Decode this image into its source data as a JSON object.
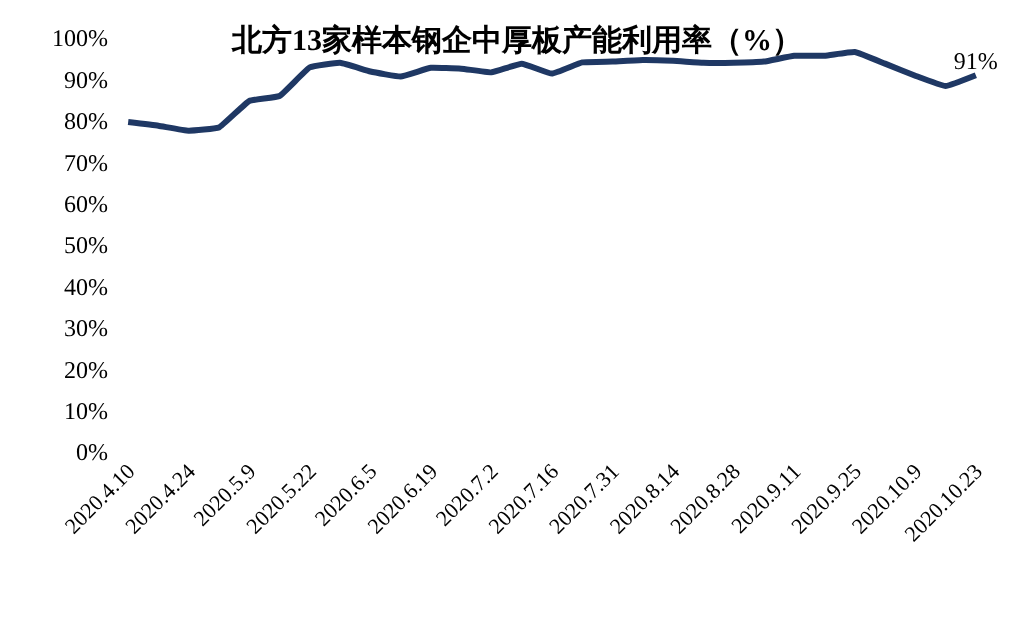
{
  "chart_data": {
    "type": "line",
    "title": "北方13家样本钢企中厚板产能利用率（%）",
    "categories": [
      "2020.4.10",
      null,
      "2020.4.24",
      null,
      "2020.5.9",
      null,
      "2020.5.22",
      null,
      "2020.6.5",
      null,
      "2020.6.19",
      null,
      "2020.7.2",
      null,
      "2020.7.16",
      null,
      "2020.7.31",
      null,
      "2020.8.14",
      null,
      "2020.8.28",
      null,
      "2020.9.11",
      null,
      "2020.9.25",
      null,
      "2020.10.9",
      null,
      "2020.10.23"
    ],
    "series": [
      {
        "color": "#1f3864",
        "values": [
          79.7,
          78.8,
          77.6,
          78.4,
          84.8,
          86,
          92.9,
          94,
          91.9,
          90.7,
          92.8,
          92.6,
          91.7,
          93.8,
          91.4,
          94.1,
          94.3,
          94.7,
          94.5,
          94,
          94,
          94.3,
          95.7,
          95.7,
          96.6,
          93.8,
          90.9,
          88.4,
          91
        ],
        "value_labels": [
          null,
          null,
          null,
          null,
          null,
          null,
          null,
          null,
          null,
          null,
          null,
          null,
          null,
          null,
          null,
          null,
          null,
          null,
          null,
          null,
          null,
          null,
          null,
          null,
          null,
          null,
          null,
          null,
          "91%"
        ]
      }
    ],
    "ylim": [
      0,
      100
    ],
    "yticks": [
      {
        "value": 0,
        "label": "0%"
      },
      {
        "value": 10,
        "label": "10%"
      },
      {
        "value": 20,
        "label": "20%"
      },
      {
        "value": 30,
        "label": "30%"
      },
      {
        "value": 40,
        "label": "40%"
      },
      {
        "value": 50,
        "label": "50%"
      },
      {
        "value": 60,
        "label": "60%"
      },
      {
        "value": 70,
        "label": "70%"
      },
      {
        "value": 80,
        "label": "80%"
      },
      {
        "value": 90,
        "label": "90%"
      },
      {
        "value": 100,
        "label": "100%"
      }
    ],
    "legend": false,
    "marker": "none",
    "line_style": "solid"
  }
}
